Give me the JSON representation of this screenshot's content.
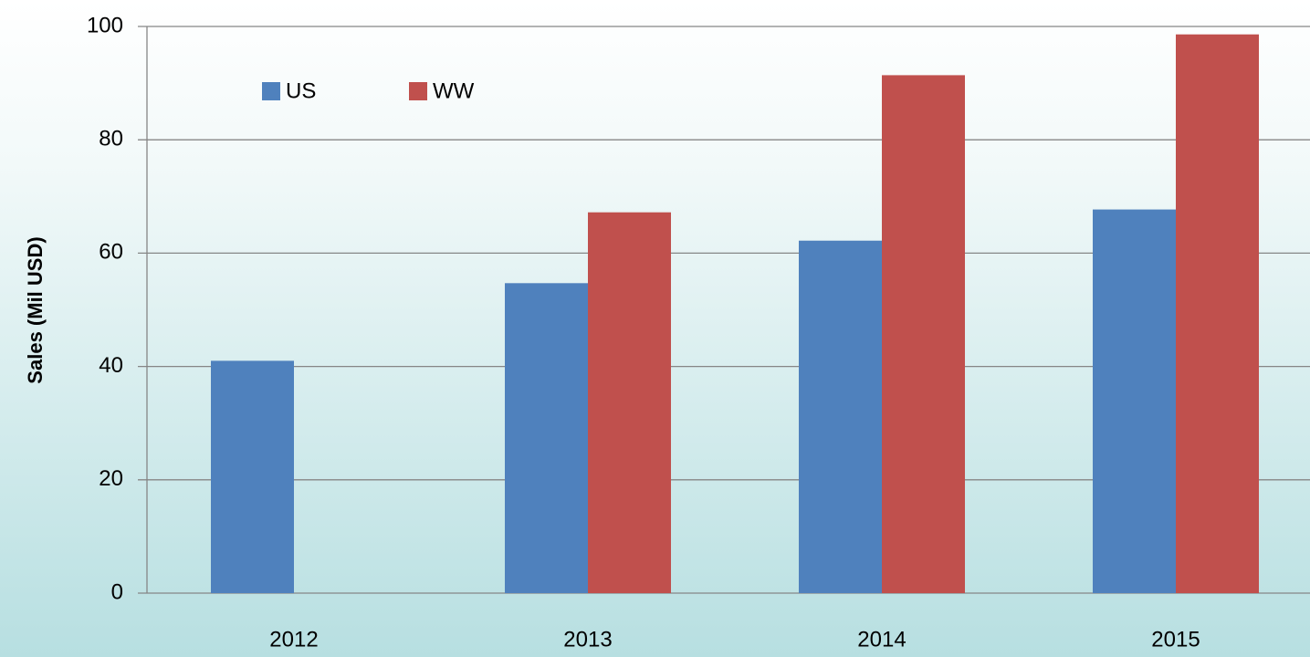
{
  "chart_data": {
    "type": "bar",
    "ylabel": "Sales (Mil USD)",
    "categories": [
      "2012",
      "2013",
      "2014",
      "2015"
    ],
    "series": [
      {
        "name": "US",
        "color": "#4f81bd",
        "values": [
          41,
          54.7,
          62.2,
          67.7
        ]
      },
      {
        "name": "WW",
        "color": "#c0504d",
        "values": [
          null,
          67.2,
          91.4,
          98.6
        ]
      }
    ],
    "ylim": [
      0,
      100
    ],
    "yticks": [
      0,
      20,
      40,
      60,
      80,
      100
    ],
    "grid": true,
    "legend": "top-left"
  }
}
